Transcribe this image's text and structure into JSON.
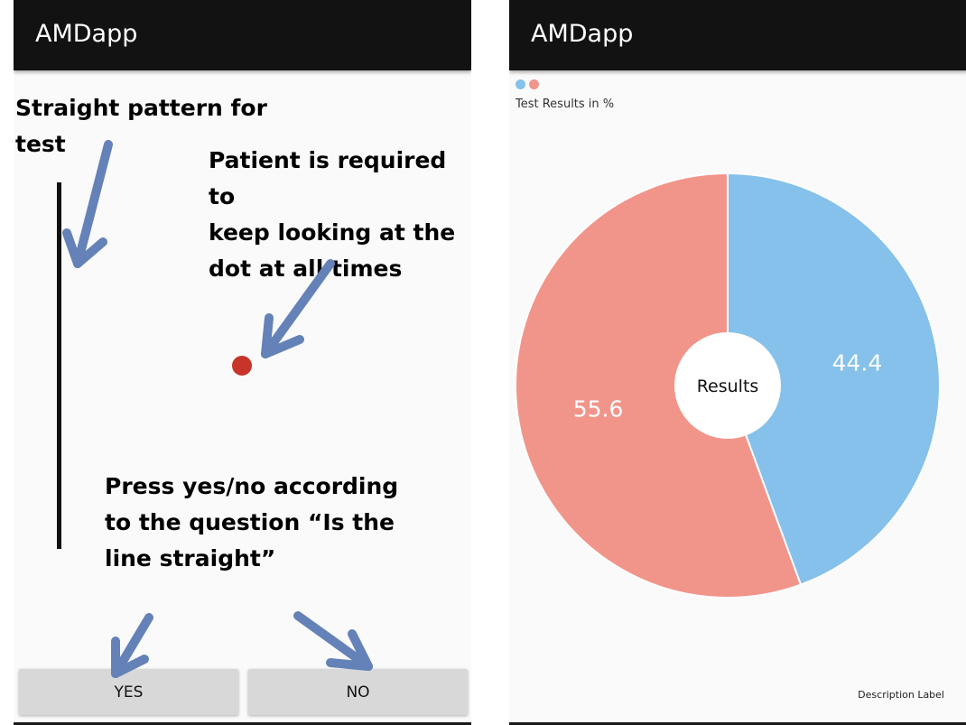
{
  "left_screen": {
    "app_title": "AMDapp",
    "annotations": {
      "pattern_line1": "Straight pattern for",
      "pattern_line2": "test",
      "patient_line1": "Patient is required to",
      "patient_line2": "keep looking at the",
      "patient_line3": "dot at all times",
      "press_line1": "Press yes/no according",
      "press_line2": "to the question “Is the",
      "press_line3": "line straight”"
    },
    "buttons": {
      "yes": "YES",
      "no": "NO"
    },
    "colors": {
      "dot": "#c7342a",
      "arrow": "#6482b8"
    }
  },
  "right_screen": {
    "app_title": "AMDapp",
    "chart_description": "Test Results in %",
    "description_label": "Description Label"
  },
  "chart_data": {
    "type": "pie",
    "center_text": "Results",
    "slices": [
      {
        "value": 44.4,
        "color": "#85c1ea"
      },
      {
        "value": 55.6,
        "color": "#f1958a"
      }
    ],
    "legend": {
      "placement": "top-left"
    }
  }
}
